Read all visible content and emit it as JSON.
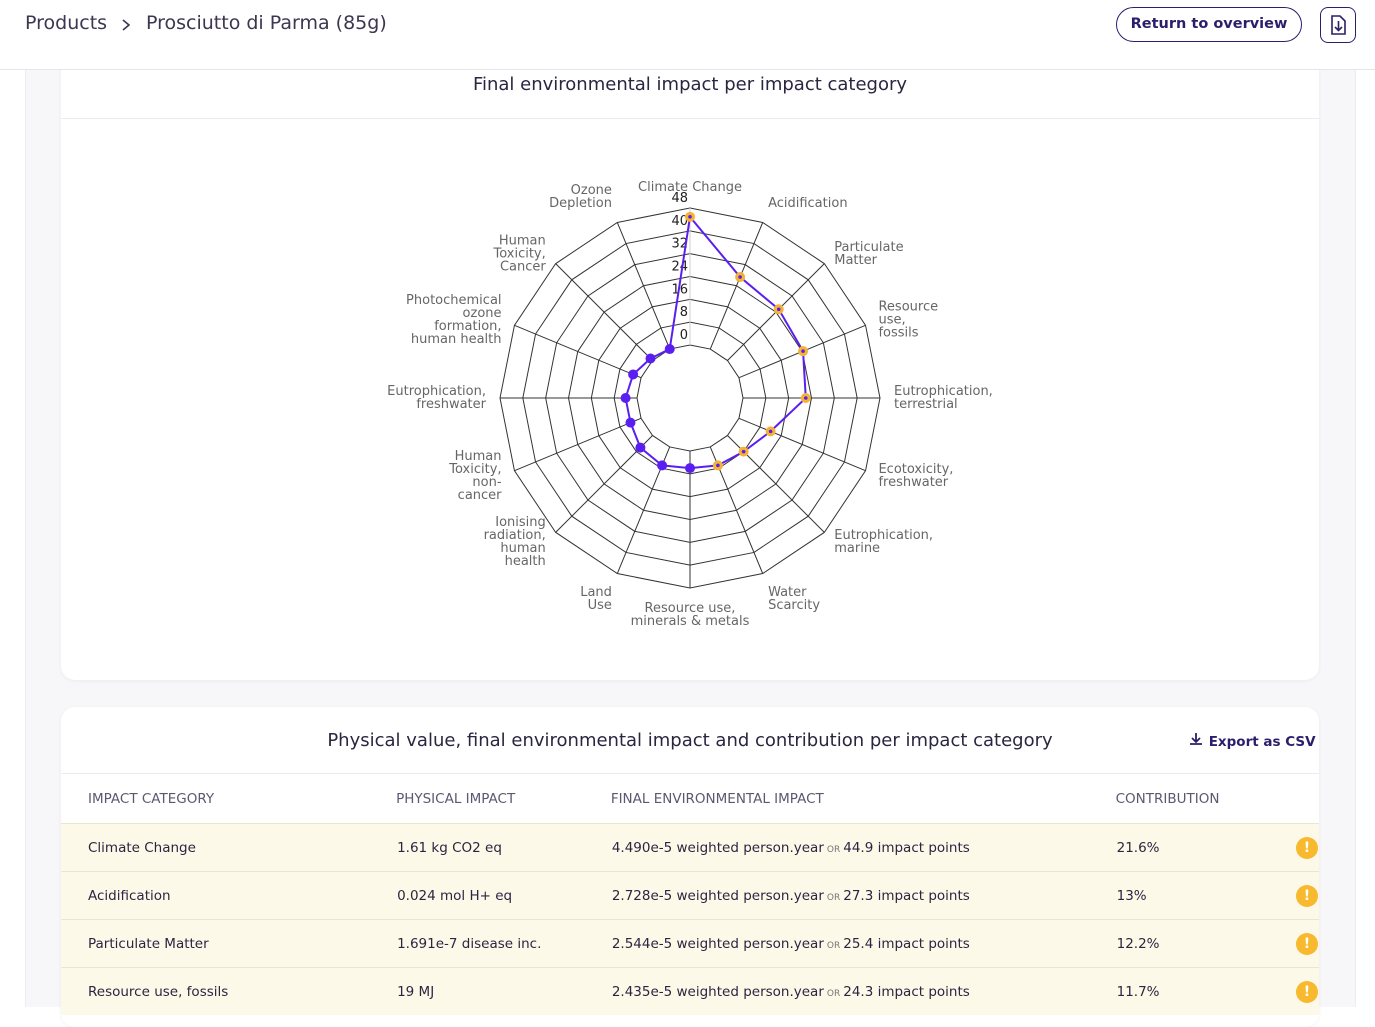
{
  "header": {
    "breadcrumb": [
      "Products",
      "Prosciutto di Parma (85g)"
    ],
    "button": "Return to overview"
  },
  "chart_data": {
    "type": "radar",
    "title": "Final environmental impact per impact category",
    "categories": [
      "Climate Change",
      "Acidification",
      "Particulate Matter",
      "Resource use, fossils",
      "Eutrophication, terrestrial",
      "Ecotoxicity, freshwater",
      "Eutrophication, marine",
      "Water Scarcity",
      "Resource use, minerals & metals",
      "Land Use",
      "Ionising radiation, human health",
      "Human Toxicity, non-cancer",
      "Eutrophication, freshwater",
      "Photochemical ozone formation, human health",
      "Human Toxicity, Cancer",
      "Ozone Depletion"
    ],
    "series": [
      {
        "color": "#5a1ff0",
        "values": [
          44.9,
          27.3,
          25.4,
          24.3,
          22,
          12,
          8,
          7,
          6,
          7,
          6,
          4,
          4,
          3,
          1,
          0
        ]
      }
    ],
    "point_colors": [
      "#f5b335",
      "#f5b335",
      "#f5b335",
      "#f5b335",
      "#f5b335",
      "#f5b335",
      "#f5b335",
      "#f5b335",
      "#5a1ff0",
      "#5a1ff0",
      "#5a1ff0",
      "#5a1ff0",
      "#5a1ff0",
      "#5a1ff0",
      "#5a1ff0",
      "#5a1ff0"
    ],
    "rlim": [
      0,
      48
    ],
    "rticks": [
      0,
      8,
      16,
      24,
      32,
      40,
      48
    ]
  },
  "table": {
    "title": "Physical value, final environmental impact and contribution per impact category",
    "export": "Export as CSV",
    "columns": [
      "IMPACT CATEGORY",
      "PHYSICAL IMPACT",
      "FINAL ENVIRONMENTAL IMPACT",
      "CONTRIBUTION"
    ],
    "rows": [
      [
        "Climate Change",
        "1.61 kg CO2 eq",
        "4.490e-5 weighted person.year",
        "OR",
        "44.9 impact points",
        "21.6%"
      ],
      [
        "Acidification",
        "0.024 mol H+ eq",
        "2.728e-5 weighted person.year",
        "OR",
        "27.3 impact points",
        "13%"
      ],
      [
        "Particulate Matter",
        "1.691e-7 disease inc.",
        "2.544e-5 weighted person.year",
        "OR",
        "25.4 impact points",
        "12.2%"
      ],
      [
        "Resource use, fossils",
        "19 MJ",
        "2.435e-5 weighted person.year",
        "OR",
        "24.3 impact points",
        "11.7%"
      ]
    ]
  }
}
